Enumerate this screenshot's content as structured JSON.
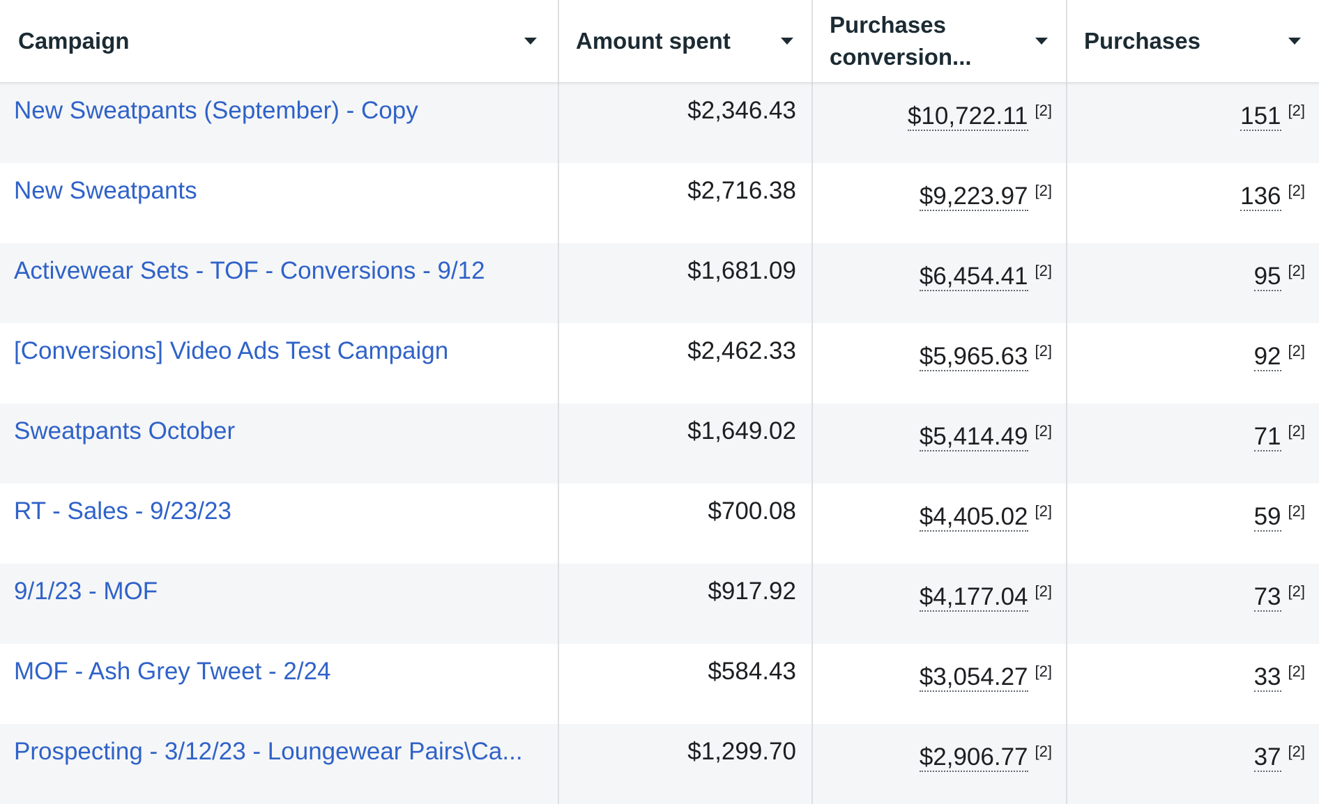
{
  "columns": [
    {
      "label": "Campaign"
    },
    {
      "label": "Amount spent"
    },
    {
      "label": "Purchases conversion..."
    },
    {
      "label": "Purchases"
    }
  ],
  "footnote_marker": "[2]",
  "rows": [
    {
      "campaign": "New Sweatpants (September) - Copy",
      "amount_spent": "$2,346.43",
      "conversion_value": "$10,722.11",
      "purchases": "151"
    },
    {
      "campaign": "New Sweatpants",
      "amount_spent": "$2,716.38",
      "conversion_value": "$9,223.97",
      "purchases": "136"
    },
    {
      "campaign": "Activewear Sets - TOF - Conversions - 9/12",
      "amount_spent": "$1,681.09",
      "conversion_value": "$6,454.41",
      "purchases": "95"
    },
    {
      "campaign": "[Conversions] Video Ads Test Campaign",
      "amount_spent": "$2,462.33",
      "conversion_value": "$5,965.63",
      "purchases": "92"
    },
    {
      "campaign": "Sweatpants October",
      "amount_spent": "$1,649.02",
      "conversion_value": "$5,414.49",
      "purchases": "71"
    },
    {
      "campaign": "RT - Sales - 9/23/23",
      "amount_spent": "$700.08",
      "conversion_value": "$4,405.02",
      "purchases": "59"
    },
    {
      "campaign": "9/1/23 - MOF",
      "amount_spent": "$917.92",
      "conversion_value": "$4,177.04",
      "purchases": "73"
    },
    {
      "campaign": "MOF - Ash Grey Tweet - 2/24",
      "amount_spent": "$584.43",
      "conversion_value": "$3,054.27",
      "purchases": "33"
    },
    {
      "campaign": "Prospecting - 3/12/23 - Loungewear Pairs\\Ca...",
      "amount_spent": "$1,299.70",
      "conversion_value": "$2,906.77",
      "purchases": "37"
    }
  ]
}
